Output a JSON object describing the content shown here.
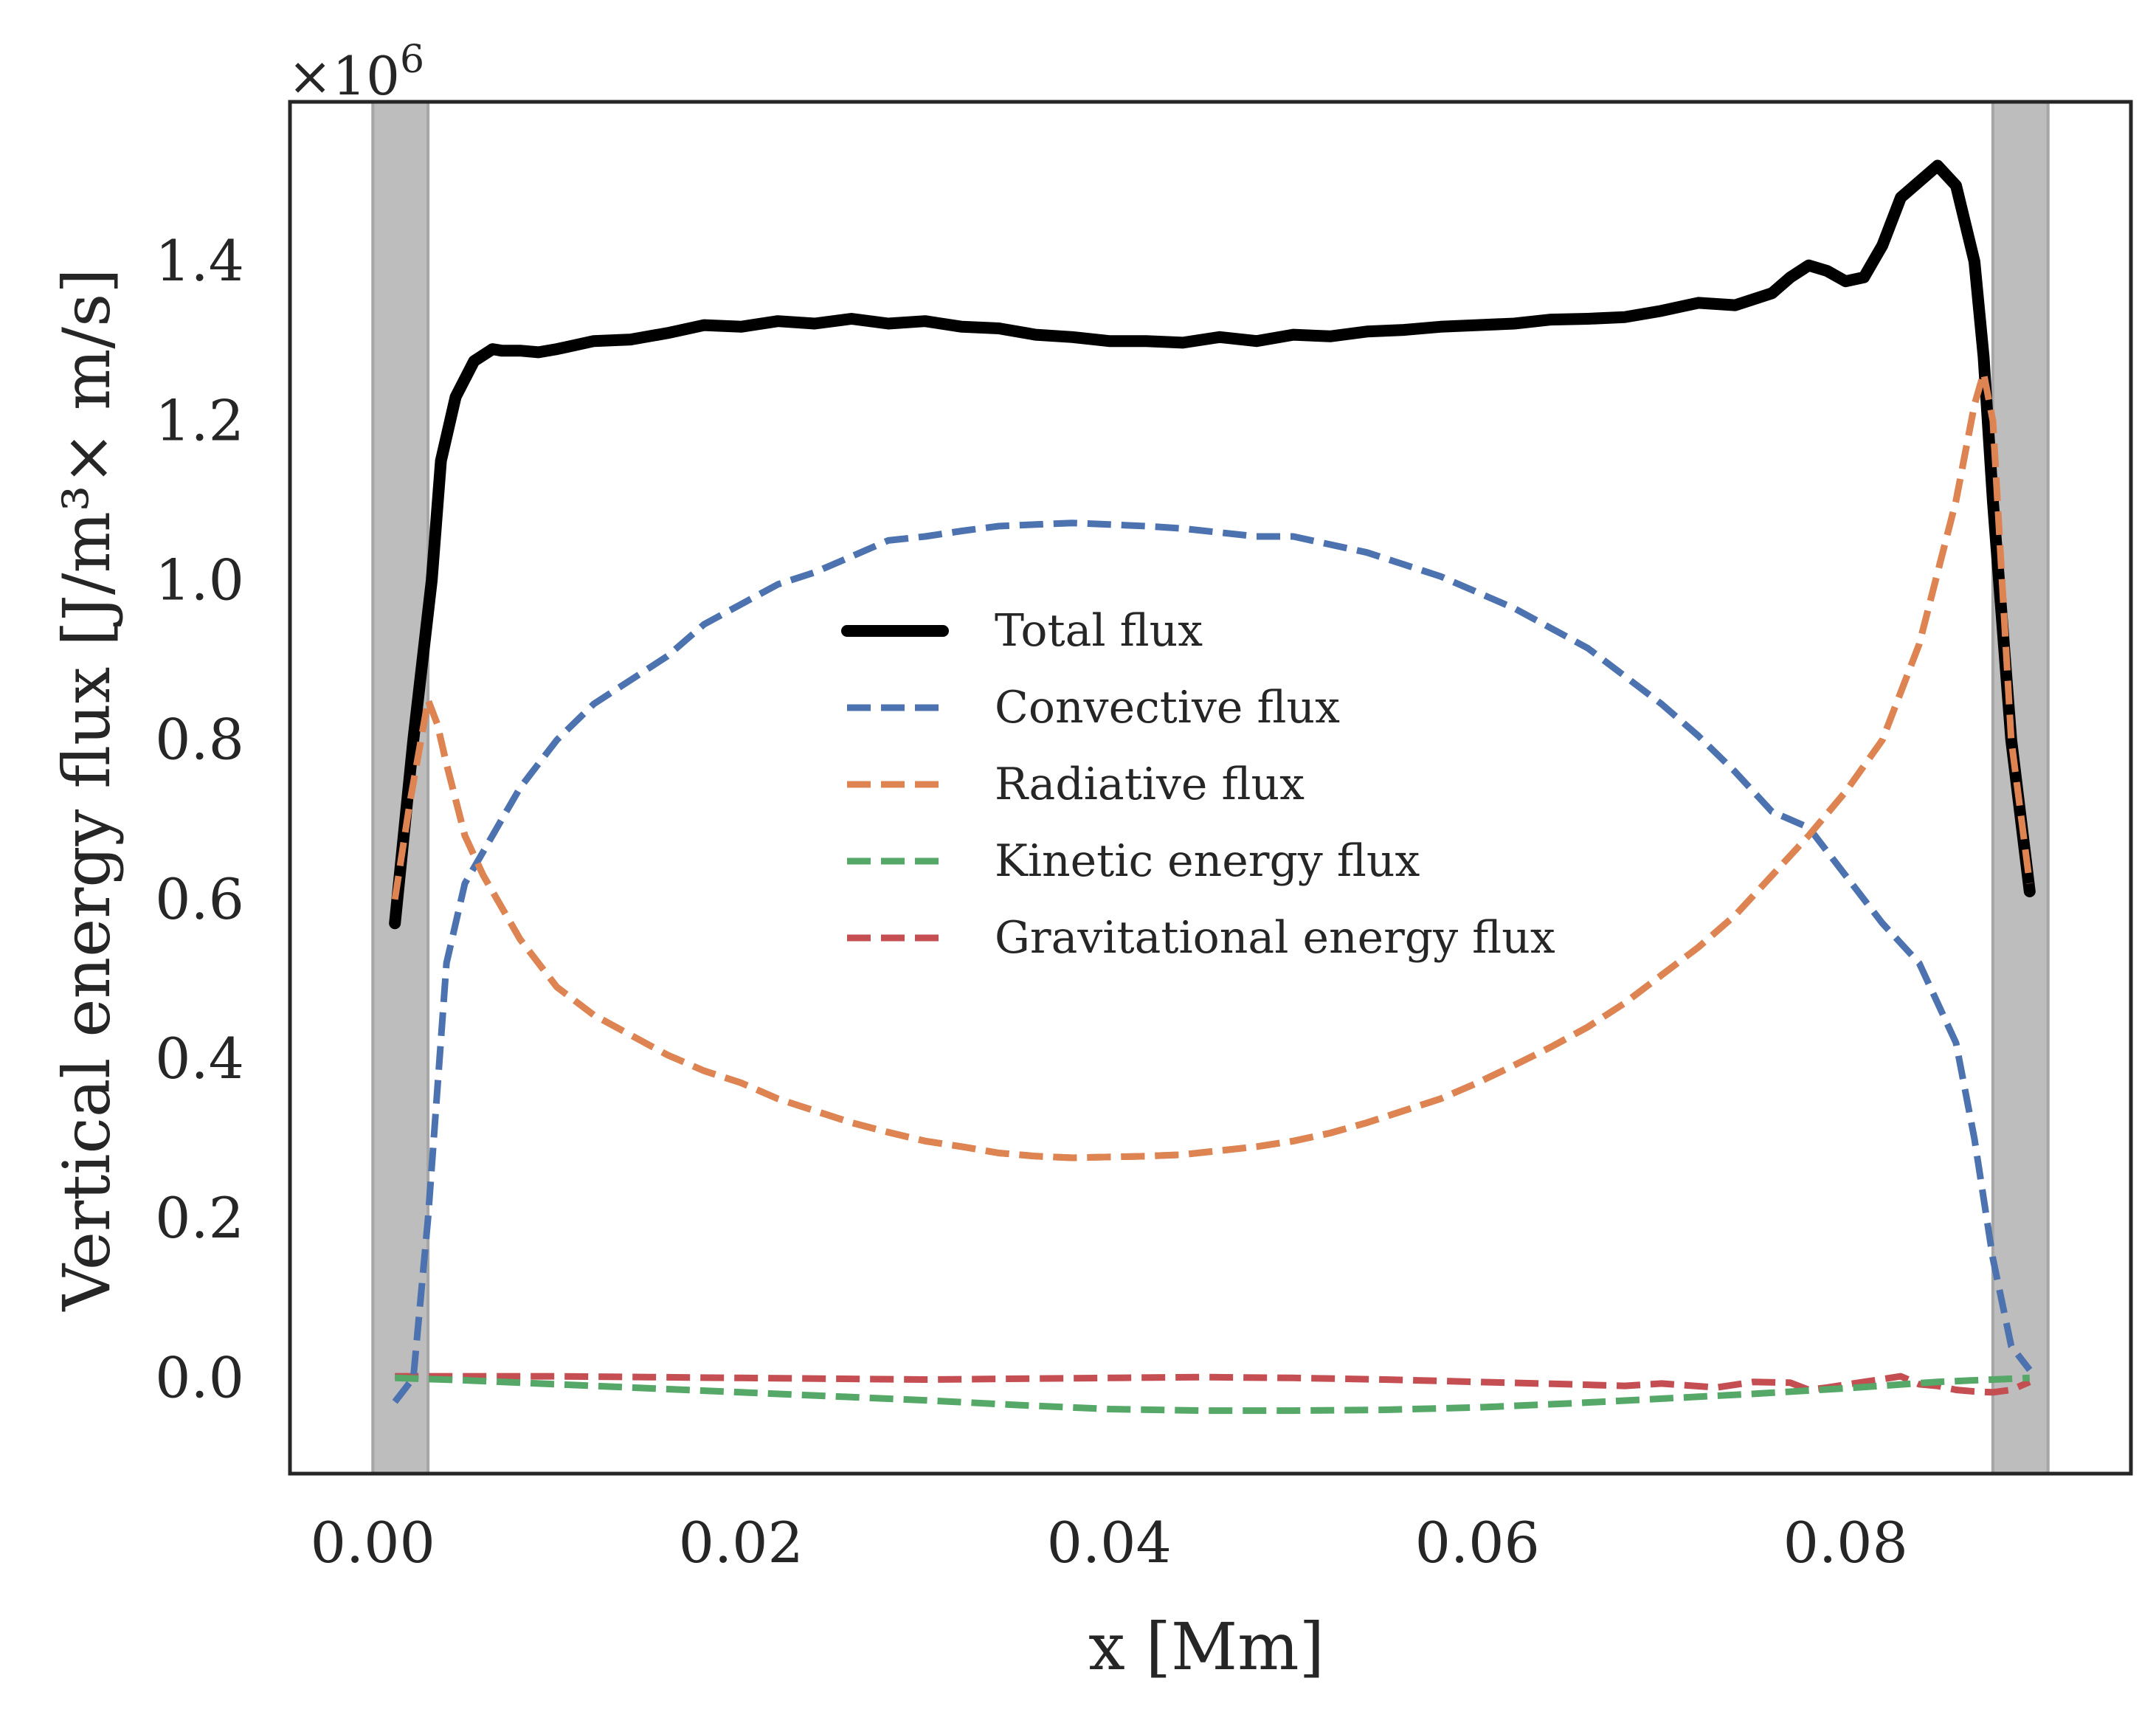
{
  "chart_data": {
    "type": "line",
    "title": "",
    "xlabel": "x [Mm]",
    "ylabel": "Vertical energy flux [J/m³× m/s]",
    "y_offset_label": "×10",
    "y_offset_exponent": "6",
    "xlim": [
      -0.0045,
      0.0955
    ],
    "ylim": [
      -0.12,
      1.6
    ],
    "xticks": [
      0.0,
      0.02,
      0.04,
      0.06,
      0.08
    ],
    "xtick_labels": [
      "0.00",
      "0.02",
      "0.04",
      "0.06",
      "0.08"
    ],
    "yticks": [
      0.0,
      0.2,
      0.4,
      0.6,
      0.8,
      1.0,
      1.2,
      1.4
    ],
    "ytick_labels": [
      "0.0",
      "0.2",
      "0.4",
      "0.6",
      "0.8",
      "1.0",
      "1.2",
      "1.4"
    ],
    "grid": false,
    "legend_position": "center",
    "shaded_regions": [
      {
        "x0": 0.0,
        "x1": 0.003,
        "color": "#bdbdbd"
      },
      {
        "x0": 0.088,
        "x1": 0.091,
        "color": "#bdbdbd"
      }
    ],
    "series": [
      {
        "name": "Total flux",
        "color": "#000000",
        "style": "solid",
        "x": [
          0.0012,
          0.0022,
          0.0032,
          0.0037,
          0.0045,
          0.0055,
          0.0065,
          0.007,
          0.008,
          0.009,
          0.01,
          0.012,
          0.014,
          0.016,
          0.018,
          0.02,
          0.022,
          0.024,
          0.026,
          0.028,
          0.03,
          0.032,
          0.034,
          0.036,
          0.038,
          0.04,
          0.042,
          0.044,
          0.046,
          0.048,
          0.05,
          0.052,
          0.054,
          0.056,
          0.058,
          0.06,
          0.062,
          0.064,
          0.066,
          0.068,
          0.07,
          0.072,
          0.074,
          0.076,
          0.077,
          0.078,
          0.079,
          0.08,
          0.081,
          0.082,
          0.083,
          0.084,
          0.085,
          0.086,
          0.087,
          0.0875,
          0.088,
          0.0885,
          0.089,
          0.09
        ],
        "y": [
          0.57,
          0.8,
          1.0,
          1.15,
          1.23,
          1.275,
          1.29,
          1.288,
          1.288,
          1.286,
          1.29,
          1.3,
          1.302,
          1.31,
          1.32,
          1.318,
          1.325,
          1.322,
          1.328,
          1.322,
          1.325,
          1.318,
          1.316,
          1.308,
          1.305,
          1.3,
          1.3,
          1.298,
          1.305,
          1.3,
          1.308,
          1.306,
          1.312,
          1.314,
          1.318,
          1.32,
          1.322,
          1.327,
          1.328,
          1.33,
          1.338,
          1.348,
          1.345,
          1.36,
          1.38,
          1.395,
          1.388,
          1.375,
          1.38,
          1.42,
          1.48,
          1.5,
          1.52,
          1.495,
          1.4,
          1.28,
          1.1,
          0.95,
          0.8,
          0.61
        ]
      },
      {
        "name": "Convective flux",
        "color": "#4c72b0",
        "style": "dashed",
        "x": [
          0.0012,
          0.0022,
          0.003,
          0.004,
          0.005,
          0.006,
          0.007,
          0.008,
          0.009,
          0.01,
          0.012,
          0.014,
          0.016,
          0.018,
          0.02,
          0.022,
          0.024,
          0.026,
          0.028,
          0.03,
          0.032,
          0.034,
          0.036,
          0.038,
          0.04,
          0.042,
          0.044,
          0.046,
          0.048,
          0.05,
          0.052,
          0.054,
          0.056,
          0.058,
          0.06,
          0.062,
          0.064,
          0.066,
          0.068,
          0.07,
          0.072,
          0.074,
          0.076,
          0.078,
          0.08,
          0.082,
          0.084,
          0.086,
          0.087,
          0.088,
          0.089,
          0.09
        ],
        "y": [
          -0.03,
          0.0,
          0.2,
          0.52,
          0.62,
          0.66,
          0.7,
          0.74,
          0.77,
          0.8,
          0.845,
          0.875,
          0.905,
          0.945,
          0.97,
          0.995,
          1.01,
          1.03,
          1.05,
          1.055,
          1.062,
          1.068,
          1.07,
          1.072,
          1.07,
          1.068,
          1.065,
          1.06,
          1.055,
          1.055,
          1.045,
          1.035,
          1.02,
          1.005,
          0.985,
          0.965,
          0.94,
          0.915,
          0.88,
          0.845,
          0.805,
          0.76,
          0.71,
          0.69,
          0.63,
          0.57,
          0.52,
          0.42,
          0.3,
          0.15,
          0.04,
          0.01
        ]
      },
      {
        "name": "Radiative flux",
        "color": "#dd8452",
        "style": "dashed",
        "x": [
          0.0012,
          0.002,
          0.003,
          0.0035,
          0.004,
          0.005,
          0.006,
          0.008,
          0.01,
          0.012,
          0.014,
          0.016,
          0.018,
          0.02,
          0.022,
          0.024,
          0.026,
          0.028,
          0.03,
          0.032,
          0.034,
          0.036,
          0.038,
          0.04,
          0.042,
          0.044,
          0.046,
          0.048,
          0.05,
          0.052,
          0.054,
          0.056,
          0.058,
          0.06,
          0.062,
          0.064,
          0.066,
          0.068,
          0.07,
          0.072,
          0.074,
          0.076,
          0.078,
          0.08,
          0.082,
          0.084,
          0.086,
          0.087,
          0.0875,
          0.088,
          0.0885,
          0.089,
          0.09
        ],
        "y": [
          0.6,
          0.72,
          0.85,
          0.82,
          0.77,
          0.68,
          0.63,
          0.55,
          0.49,
          0.455,
          0.43,
          0.405,
          0.385,
          0.37,
          0.35,
          0.335,
          0.32,
          0.308,
          0.297,
          0.29,
          0.282,
          0.278,
          0.276,
          0.277,
          0.278,
          0.28,
          0.285,
          0.29,
          0.297,
          0.307,
          0.32,
          0.335,
          0.35,
          0.37,
          0.392,
          0.415,
          0.44,
          0.47,
          0.505,
          0.54,
          0.58,
          0.63,
          0.68,
          0.735,
          0.8,
          0.92,
          1.1,
          1.22,
          1.26,
          1.2,
          1.0,
          0.8,
          0.62
        ]
      },
      {
        "name": "Kinetic energy flux",
        "color": "#55a868",
        "style": "dashed",
        "x": [
          0.0012,
          0.005,
          0.01,
          0.015,
          0.02,
          0.025,
          0.03,
          0.035,
          0.04,
          0.045,
          0.05,
          0.055,
          0.06,
          0.065,
          0.07,
          0.075,
          0.08,
          0.085,
          0.09
        ],
        "y": [
          0.0,
          -0.003,
          -0.008,
          -0.013,
          -0.018,
          -0.023,
          -0.028,
          -0.034,
          -0.039,
          -0.041,
          -0.041,
          -0.04,
          -0.037,
          -0.032,
          -0.026,
          -0.02,
          -0.013,
          -0.005,
          0.0
        ]
      },
      {
        "name": "Gravitational energy flux",
        "color": "#c44e52",
        "style": "dashed",
        "x": [
          0.0012,
          0.005,
          0.01,
          0.015,
          0.02,
          0.025,
          0.03,
          0.035,
          0.04,
          0.045,
          0.05,
          0.055,
          0.06,
          0.065,
          0.068,
          0.07,
          0.073,
          0.075,
          0.077,
          0.078,
          0.079,
          0.081,
          0.083,
          0.084,
          0.085,
          0.086,
          0.087,
          0.088,
          0.089,
          0.09
        ],
        "y": [
          0.002,
          0.002,
          0.002,
          0.001,
          0.0,
          -0.001,
          -0.002,
          -0.001,
          0.0,
          0.001,
          0.0,
          -0.002,
          -0.005,
          -0.008,
          -0.01,
          -0.007,
          -0.012,
          -0.005,
          -0.006,
          -0.015,
          -0.012,
          -0.005,
          0.002,
          -0.008,
          -0.01,
          -0.015,
          -0.017,
          -0.018,
          -0.015,
          -0.005
        ]
      }
    ]
  }
}
